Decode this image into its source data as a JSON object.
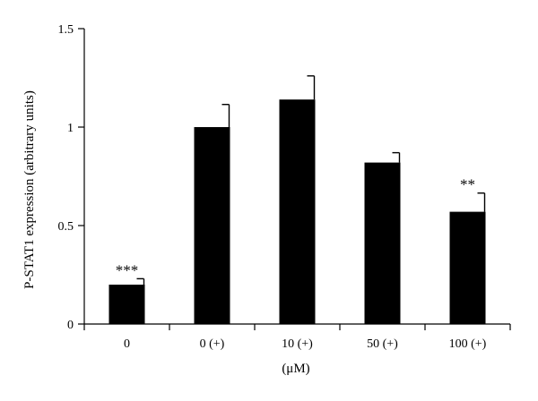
{
  "chart_data": {
    "type": "bar",
    "categories": [
      "0",
      "0 (+)",
      "10 (+)",
      "50 (+)",
      "100 (+)"
    ],
    "values": [
      0.2,
      1.0,
      1.14,
      0.82,
      0.57
    ],
    "errors": [
      0.03,
      0.115,
      0.12,
      0.05,
      0.095
    ],
    "annotations": [
      "***",
      "",
      "",
      "",
      "**"
    ],
    "xlabel": "(μM)",
    "ylabel": "P-STAT1 expression (arbitrary units)",
    "ylim": [
      0,
      1.5
    ],
    "yticks": [
      0,
      0.5,
      1,
      1.5
    ],
    "ytick_labels": [
      "0",
      "0.5",
      "1",
      "1.5"
    ],
    "bar_color": "#000000",
    "grid": false,
    "legend": "none"
  }
}
